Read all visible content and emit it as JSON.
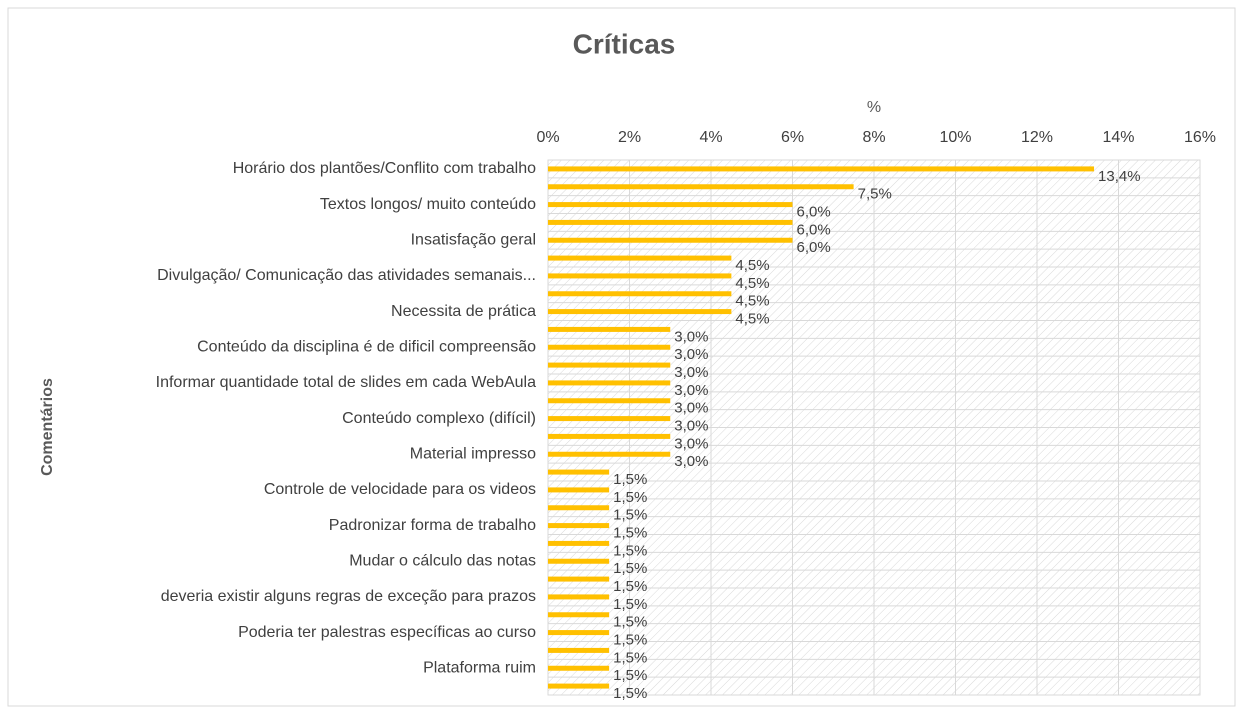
{
  "chart_data": {
    "type": "bar",
    "orientation": "horizontal",
    "title": "Críticas",
    "x_label": "%",
    "y_label": "Comentários",
    "categories": [
      "Horário dos plantões/Conflito com trabalho",
      null,
      "Textos longos/ muito conteúdo",
      null,
      "Insatisfação geral",
      null,
      "Divulgação/ Comunicação das atividades semanais...",
      null,
      "Necessita de prática",
      null,
      "Conteúdo da disciplina é de dificil compreensão",
      null,
      "Informar quantidade total de slides em cada WebAula",
      null,
      "Conteúdo complexo (difícil)",
      null,
      "Material impresso",
      null,
      "Controle de velocidade para os videos",
      null,
      "Padronizar forma de trabalho",
      null,
      "Mudar o cálculo das notas",
      null,
      "deveria existir alguns regras de exceção para prazos",
      null,
      "Poderia ter palestras específicas ao curso",
      null,
      "Plataforma ruim",
      null
    ],
    "values": [
      13.4,
      7.5,
      6.0,
      6.0,
      6.0,
      4.5,
      4.5,
      4.5,
      4.5,
      3.0,
      3.0,
      3.0,
      3.0,
      3.0,
      3.0,
      3.0,
      3.0,
      1.5,
      1.5,
      1.5,
      1.5,
      1.5,
      1.5,
      1.5,
      1.5,
      1.5,
      1.5,
      1.5,
      1.5,
      1.5
    ],
    "value_labels": [
      "13,4%",
      "7,5%",
      "6,0%",
      "6,0%",
      "6,0%",
      "4,5%",
      "4,5%",
      "4,5%",
      "4,5%",
      "3,0%",
      "3,0%",
      "3,0%",
      "3,0%",
      "3,0%",
      "3,0%",
      "3,0%",
      "3,0%",
      "1,5%",
      "1,5%",
      "1,5%",
      "1,5%",
      "1,5%",
      "1,5%",
      "1,5%",
      "1,5%",
      "1,5%",
      "1,5%",
      "1,5%",
      "1,5%",
      "1,5%"
    ],
    "color": "#ffc000",
    "xlim": [
      0,
      16
    ],
    "xticks": [
      {
        "value": 0,
        "label": "0%"
      },
      {
        "value": 2,
        "label": "2%"
      },
      {
        "value": 4,
        "label": "4%"
      },
      {
        "value": 6,
        "label": "6%"
      },
      {
        "value": 8,
        "label": "8%"
      },
      {
        "value": 10,
        "label": "10%"
      },
      {
        "value": 12,
        "label": "12%"
      },
      {
        "value": 14,
        "label": "14%"
      },
      {
        "value": 16,
        "label": "16%"
      }
    ],
    "x_axis_position": "top",
    "grid": true
  }
}
